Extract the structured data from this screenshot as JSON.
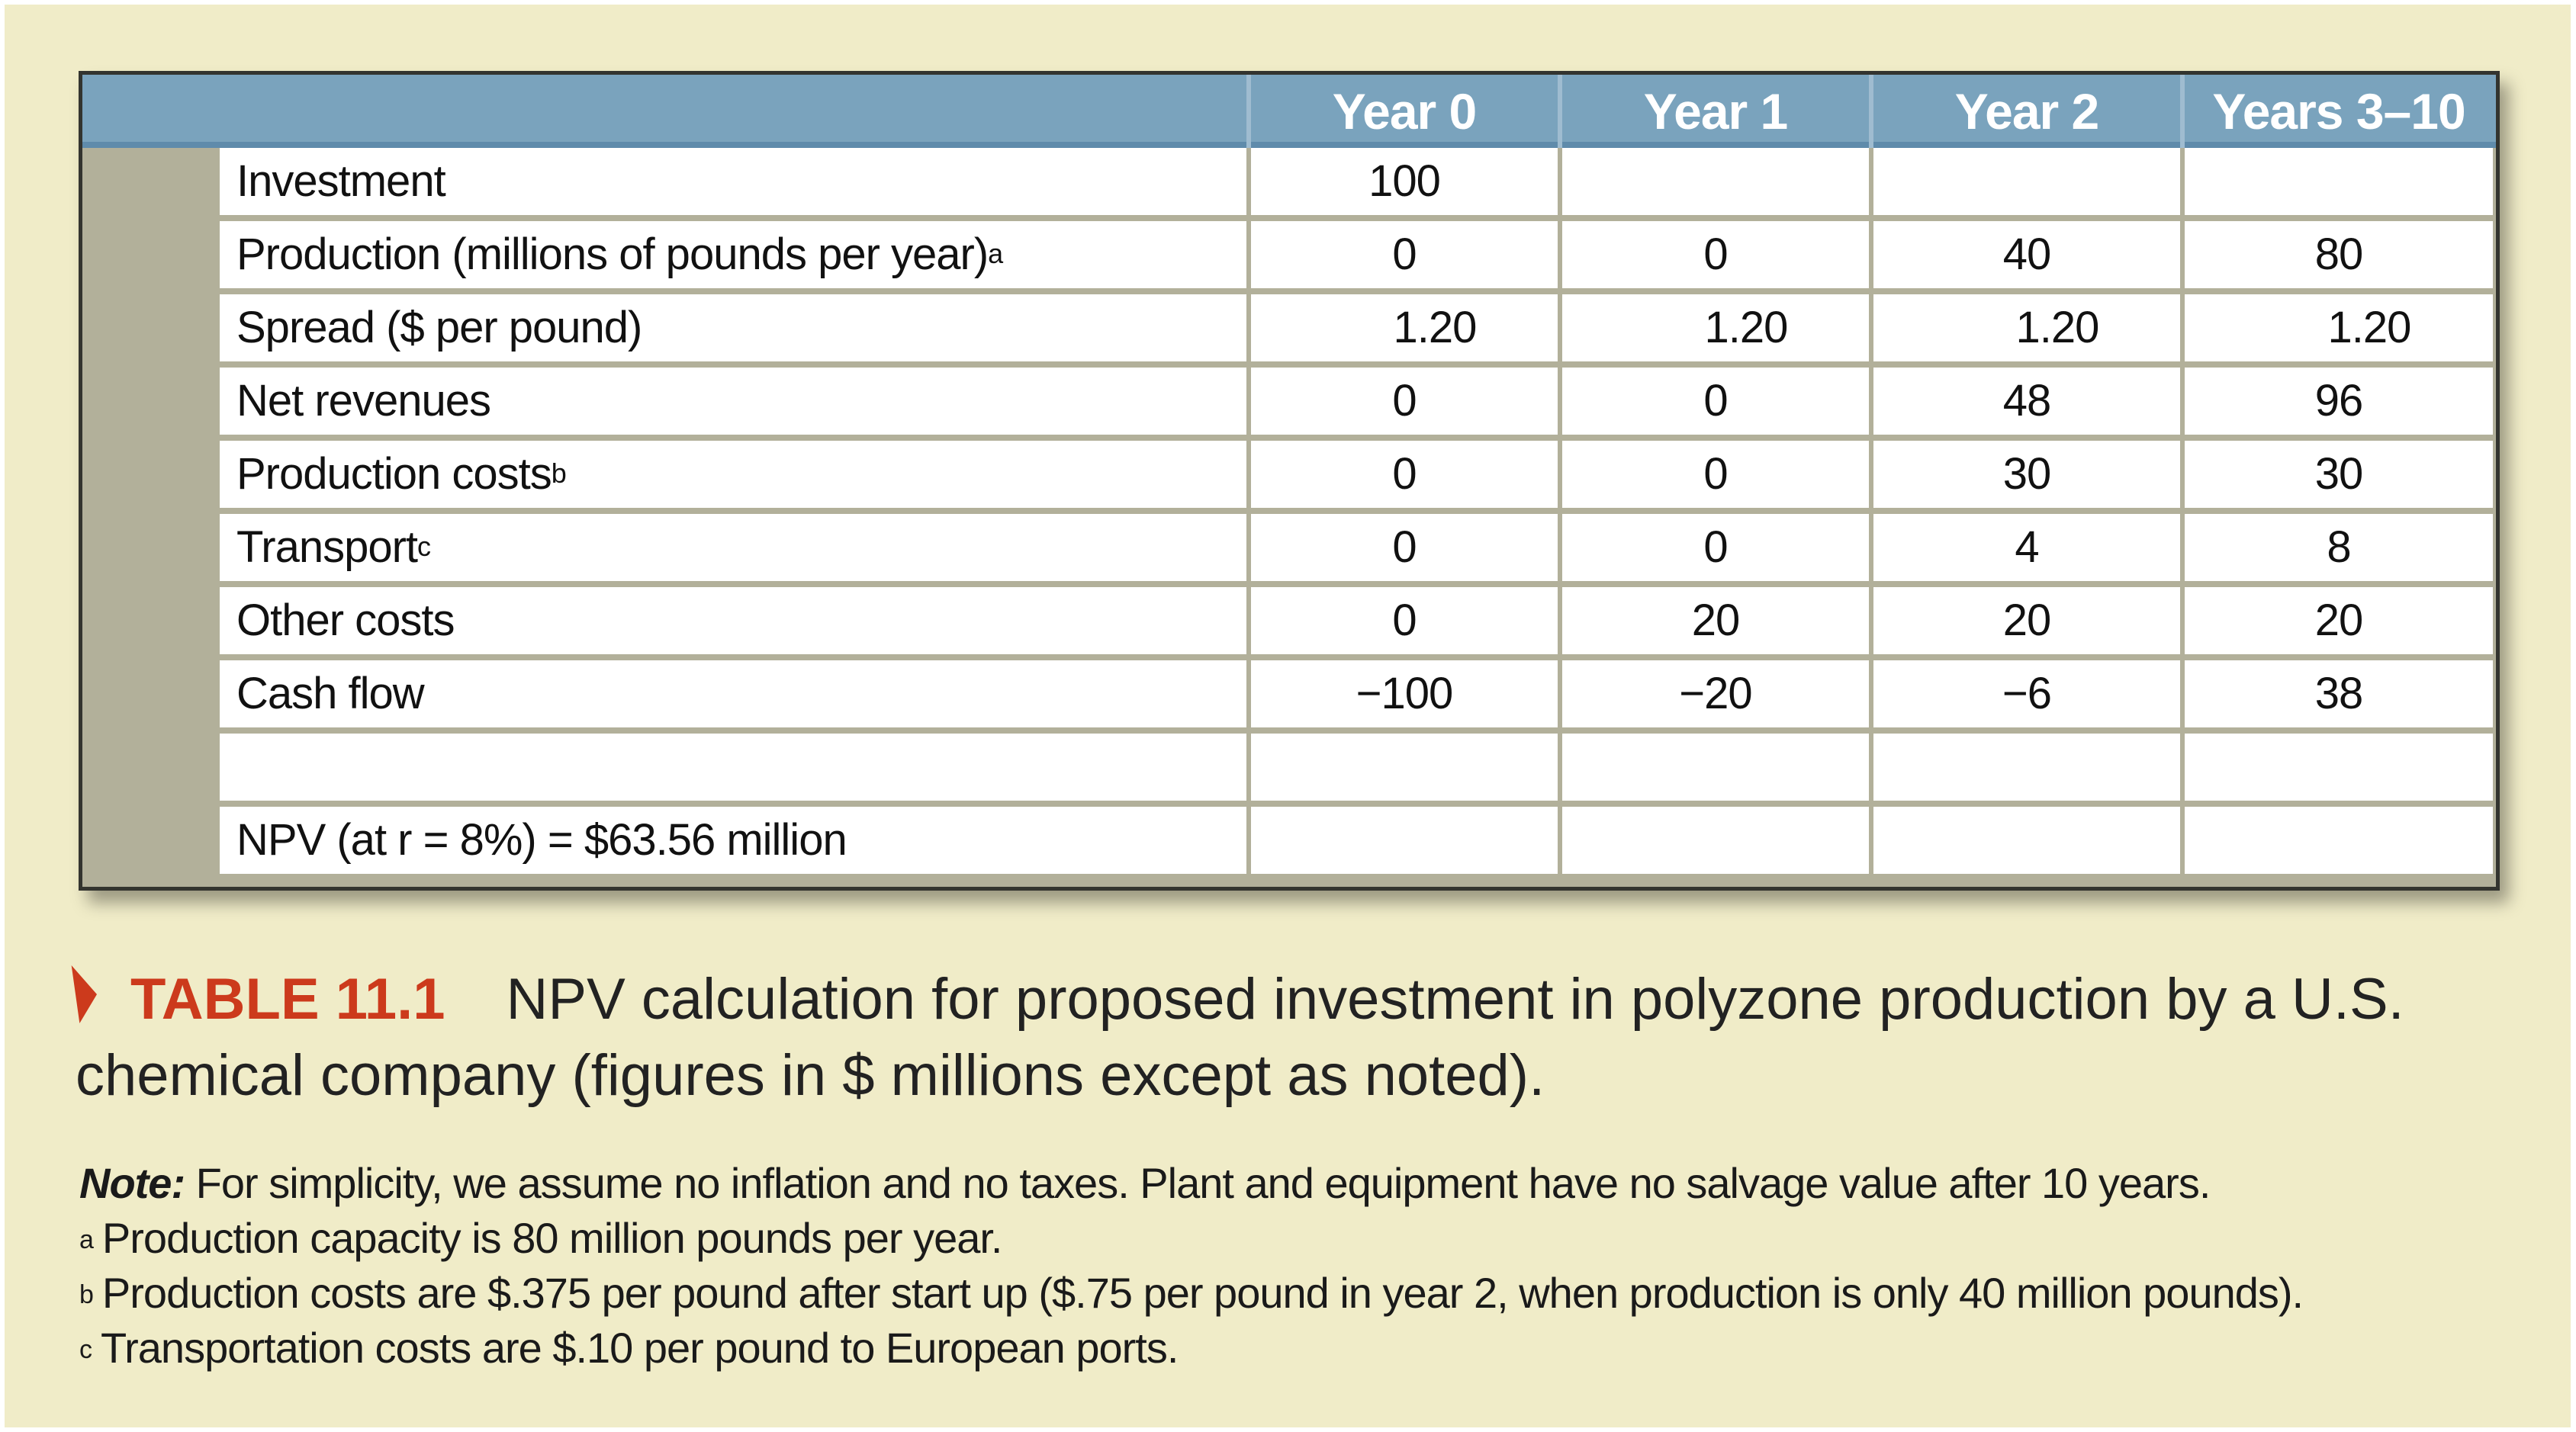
{
  "table": {
    "headers": [
      "",
      "Year 0",
      "Year 1",
      "Year 2",
      "Years 3–10"
    ],
    "rows": [
      {
        "label": "Investment",
        "sup": "",
        "values": [
          "100",
          "",
          "",
          ""
        ]
      },
      {
        "label": "Production (millions of pounds per year)",
        "sup": "a",
        "values": [
          "0",
          "0",
          "40",
          "80"
        ]
      },
      {
        "label": "Spread ($ per pound)",
        "sup": "",
        "values": [
          "1.20",
          "1.20",
          "1.20",
          "1.20"
        ]
      },
      {
        "label": "Net revenues",
        "sup": "",
        "values": [
          "0",
          "0",
          "48",
          "96"
        ]
      },
      {
        "label": "Production costs",
        "sup": "b",
        "values": [
          "0",
          "0",
          "30",
          "30"
        ]
      },
      {
        "label": "Transport",
        "sup": "c",
        "values": [
          "0",
          "0",
          "4",
          "8"
        ]
      },
      {
        "label": "Other costs",
        "sup": "",
        "values": [
          "0",
          "20",
          "20",
          "20"
        ]
      },
      {
        "label": "Cash flow",
        "sup": "",
        "values": [
          "−100",
          "−20",
          "−6",
          "38"
        ]
      },
      {
        "label": "",
        "sup": "",
        "values": [
          "",
          "",
          "",
          ""
        ]
      },
      {
        "label": "NPV (at r = 8%) = $63.56 million",
        "sup": "",
        "values": [
          "",
          "",
          "",
          ""
        ]
      }
    ]
  },
  "caption": {
    "table_number": "TABLE 11.1",
    "text": "NPV calculation for proposed investment in polyzone production by a U.S. chemical company (figures in $ millions except as noted)."
  },
  "notes": {
    "note_head": "Note:",
    "note_text": "For simplicity, we assume no inflation and no taxes. Plant and equipment have no salvage value after 10 years.",
    "footnotes": [
      {
        "mark": "a",
        "text": "Production capacity is 80 million pounds per year."
      },
      {
        "mark": "b",
        "text": "Production costs are $.375 per pound after start up ($.75 per pound in year 2, when production is only 40 million pounds)."
      },
      {
        "mark": "c",
        "text": "Transportation costs are $.10 per pound to European ports."
      }
    ]
  },
  "colors": {
    "background": "#f0ecc8",
    "header": "#7aa3bd",
    "accent": "#cc3a1c",
    "side_band": "#b2b09a"
  }
}
